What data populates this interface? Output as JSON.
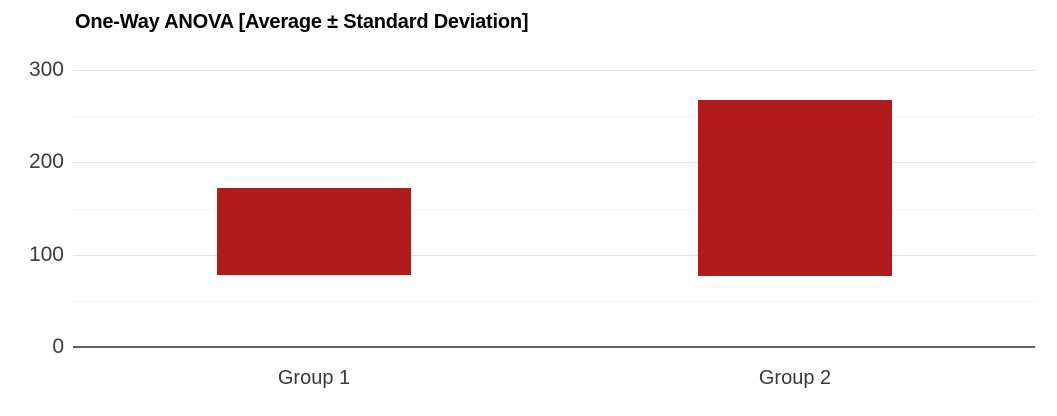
{
  "chart_data": {
    "type": "range_bar",
    "title": "One-Way ANOVA [Average ± Standard Deviation]",
    "categories": [
      "Group 1",
      "Group 2"
    ],
    "series": [
      {
        "name": "Average ± Standard Deviation",
        "ranges": [
          {
            "category": "Group 1",
            "low": 78,
            "high": 172,
            "average": 125,
            "std_dev": 47
          },
          {
            "category": "Group 2",
            "low": 77,
            "high": 268,
            "average": 172.5,
            "std_dev": 95.5
          }
        ]
      }
    ],
    "ylim": [
      0,
      300
    ],
    "yticks": [
      0,
      100,
      200,
      300
    ],
    "minor_ticks": [
      50,
      150,
      250
    ],
    "grid": true,
    "legend_position": "none",
    "colors": {
      "bar": "#b21b1b",
      "major_gridline": "#e3e3e3",
      "minor_gridline": "#f2f2f2",
      "axis_line": "#616161",
      "tick_label": "#3c3c3c",
      "category_label": "#3a3a3a",
      "title": "#000000",
      "background": "#ffffff"
    }
  }
}
